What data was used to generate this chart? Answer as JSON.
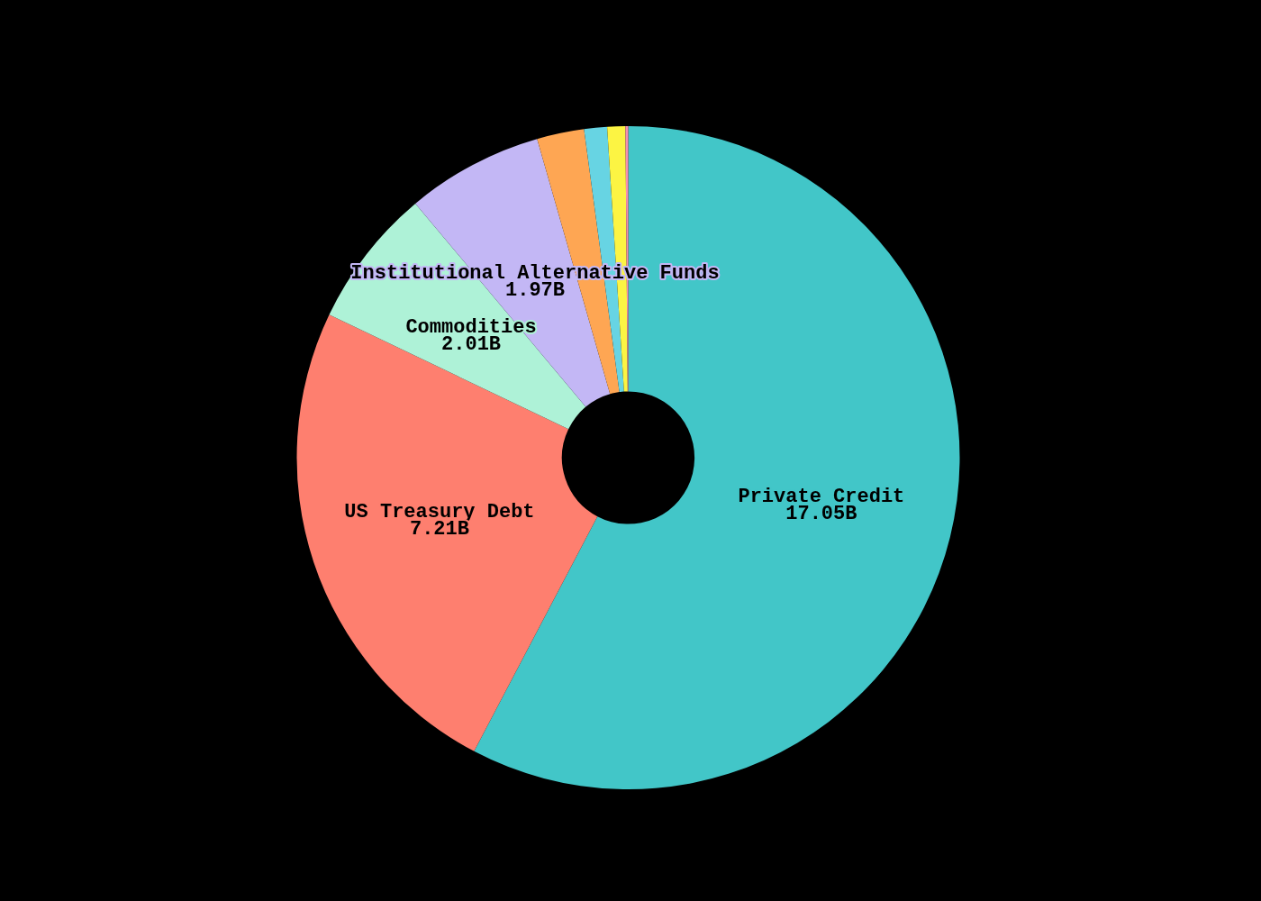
{
  "chart_data": {
    "type": "donut",
    "categories": [
      "Private Credit",
      "US Treasury Debt",
      "Commodities",
      "Institutional Alternative Funds",
      null,
      null,
      null,
      null
    ],
    "values": [
      17.05,
      7.21,
      2.01,
      1.97,
      0.68,
      0.33,
      0.26,
      0.04
    ],
    "colors": [
      "#42c6c8",
      "#fe7f6f",
      "#aef2d7",
      "#c3b7f5",
      "#fea653",
      "#67d4e3",
      "#fcf443",
      "#f78fb2"
    ],
    "value_labels": [
      "17.05B",
      "7.21B",
      "2.01B",
      "1.97B",
      null,
      null,
      null,
      null
    ]
  }
}
